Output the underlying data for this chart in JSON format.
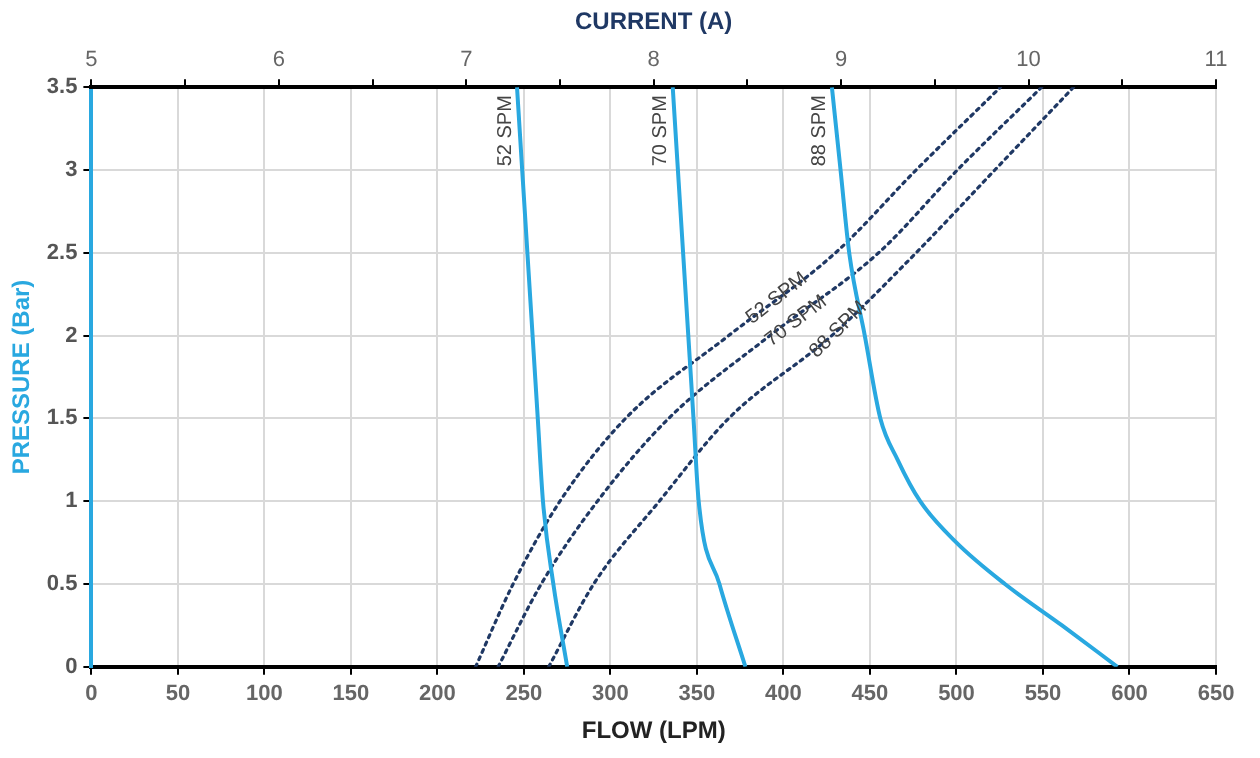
{
  "chart_data": {
    "type": "line",
    "xlabel": "FLOW (LPM)",
    "x2label": "CURRENT (A)",
    "ylabel": "PRESSURE (Bar)",
    "xlim": [
      0,
      650
    ],
    "xticks": [
      0,
      50,
      100,
      150,
      200,
      250,
      300,
      350,
      400,
      450,
      500,
      550,
      600,
      650
    ],
    "x2lim": [
      5,
      11
    ],
    "x2ticks": [
      5,
      {
        "value": 5.5,
        "label": null
      },
      6,
      {
        "value": 6.5,
        "label": null
      },
      7,
      {
        "value": 7.5,
        "label": null
      },
      8,
      {
        "value": 8.5,
        "label": null
      },
      9,
      {
        "value": 9.5,
        "label": null
      },
      10,
      {
        "value": 10.5,
        "label": null
      },
      11
    ],
    "ylim": [
      0,
      3.5
    ],
    "yticks": [
      0,
      0.5,
      1,
      1.5,
      2,
      2.5,
      3,
      3.5
    ],
    "grid": true,
    "legend": false,
    "marker": "none",
    "series": [
      {
        "name": "52 SPM",
        "color": "#29a8e0",
        "line_style": "solid",
        "x": [
          246,
          249,
          252,
          255,
          258,
          261,
          267,
          275
        ],
        "values": [
          3.5,
          3,
          2.5,
          2,
          1.5,
          1,
          0.5,
          0
        ]
      },
      {
        "name": "70 SPM",
        "color": "#29a8e0",
        "line_style": "solid",
        "x": [
          336,
          339,
          342,
          345,
          348,
          351,
          363,
          378
        ],
        "values": [
          3.5,
          3,
          2.5,
          2,
          1.5,
          1,
          0.5,
          0
        ]
      },
      {
        "name": "88 SPM",
        "color": "#29a8e0",
        "line_style": "solid",
        "x": [
          428,
          433,
          438,
          447,
          456,
          466,
          479,
          500,
          528,
          561,
          593
        ],
        "values": [
          3.5,
          3,
          2.5,
          2,
          1.5,
          1.25,
          1,
          0.75,
          0.5,
          0.25,
          0
        ]
      },
      {
        "name": "52 SPM",
        "color": "#1f3864",
        "line_style": "dotted",
        "axis": "x2",
        "x": [
          7.05,
          7.25,
          7.5,
          7.85,
          8.4,
          8.97,
          9.4,
          9.85
        ],
        "values": [
          0,
          0.5,
          1,
          1.5,
          2,
          2.5,
          3,
          3.5
        ]
      },
      {
        "name": "70 SPM",
        "color": "#1f3864",
        "line_style": "dotted",
        "axis": "x2",
        "x": [
          7.17,
          7.4,
          7.7,
          8.08,
          8.62,
          9.2,
          9.62,
          10.07
        ],
        "values": [
          0,
          0.5,
          1,
          1.5,
          2,
          2.5,
          3,
          3.5
        ]
      },
      {
        "name": "88 SPM",
        "color": "#1f3864",
        "line_style": "dotted",
        "axis": "x2",
        "x": [
          7.44,
          7.68,
          8.03,
          8.4,
          8.95,
          9.4,
          9.82,
          10.24
        ],
        "values": [
          0,
          0.5,
          1,
          1.5,
          2,
          2.5,
          3,
          3.5
        ]
      }
    ]
  }
}
